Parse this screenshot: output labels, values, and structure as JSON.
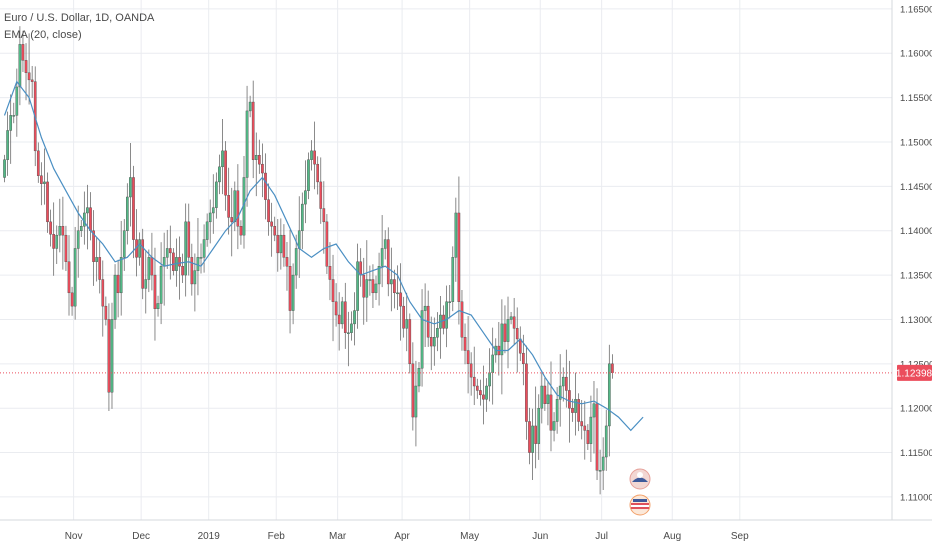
{
  "legend": {
    "symbol_line": "Euro / U.S. Dollar, 1D, OANDA",
    "indicator_line": "EMA (20, close)"
  },
  "price_tag": "1.12398",
  "colors": {
    "up": "#53b987",
    "down": "#eb4d5c",
    "ema": "#4a8fc3",
    "price_line": "#eb4d5c",
    "grid": "#eaecf0",
    "axis_text": "#4a4a4a",
    "background": "#ffffff"
  },
  "chart_data": {
    "type": "candlestick",
    "symbol": "EURUSD",
    "timeframe": "1D",
    "y_axis": {
      "ticks": [
        "1.16500",
        "1.16000",
        "1.15500",
        "1.15000",
        "1.14500",
        "1.14000",
        "1.13500",
        "1.13000",
        "1.12500",
        "1.12000",
        "1.11500",
        "1.11000"
      ],
      "range": [
        1.1074,
        1.166
      ]
    },
    "x_axis": {
      "labels": [
        {
          "text": "Nov",
          "date": "2018-11-01"
        },
        {
          "text": "Dec",
          "date": "2018-12-03"
        },
        {
          "text": "2019",
          "date": "2019-01-02"
        },
        {
          "text": "Feb",
          "date": "2019-02-01"
        },
        {
          "text": "Mar",
          "date": "2019-03-01"
        },
        {
          "text": "Apr",
          "date": "2019-04-01"
        },
        {
          "text": "May",
          "date": "2019-05-01"
        },
        {
          "text": "Jun",
          "date": "2019-06-03"
        },
        {
          "text": "Jul",
          "date": "2019-07-01"
        },
        {
          "text": "Aug",
          "date": "2019-08-01"
        },
        {
          "text": "Sep",
          "date": "2019-09-02"
        }
      ]
    },
    "last_price": 1.12398,
    "closes": [
      1.148,
      1.1513,
      1.153,
      1.153,
      1.1562,
      1.161,
      1.1592,
      1.1578,
      1.157,
      1.1568,
      1.149,
      1.1462,
      1.1453,
      1.1455,
      1.141,
      1.1396,
      1.138,
      1.1395,
      1.1405,
      1.1395,
      1.1365,
      1.133,
      1.1315,
      1.138,
      1.14,
      1.1405,
      1.142,
      1.1426,
      1.14,
      1.1365,
      1.137,
      1.1345,
      1.1315,
      1.13,
      1.1218,
      1.13,
      1.135,
      1.133,
      1.137,
      1.14,
      1.1438,
      1.146,
      1.139,
      1.137,
      1.139,
      1.1335,
      1.1345,
      1.137,
      1.135,
      1.1312,
      1.1318,
      1.136,
      1.137,
      1.138,
      1.1375,
      1.1355,
      1.137,
      1.136,
      1.135,
      1.141,
      1.137,
      1.134,
      1.1355,
      1.137,
      1.137,
      1.139,
      1.141,
      1.142,
      1.1426,
      1.1455,
      1.1472,
      1.149,
      1.144,
      1.1415,
      1.141,
      1.1445,
      1.1405,
      1.1395,
      1.146,
      1.1535,
      1.1545,
      1.148,
      1.1485,
      1.1475,
      1.1465,
      1.1435,
      1.141,
      1.1405,
      1.1395,
      1.1375,
      1.1395,
      1.137,
      1.136,
      1.131,
      1.135,
      1.138,
      1.14,
      1.143,
      1.1445,
      1.148,
      1.149,
      1.1475,
      1.1455,
      1.1425,
      1.141,
      1.136,
      1.1345,
      1.132,
      1.1305,
      1.1295,
      1.132,
      1.1285,
      1.1285,
      1.1295,
      1.131,
      1.1365,
      1.135,
      1.1325,
      1.1345,
      1.1345,
      1.133,
      1.134,
      1.136,
      1.138,
      1.139,
      1.134,
      1.1345,
      1.133,
      1.133,
      1.1315,
      1.129,
      1.13,
      1.125,
      1.119,
      1.1225,
      1.1245,
      1.131,
      1.1315,
      1.128,
      1.127,
      1.128,
      1.129,
      1.1305,
      1.129,
      1.132,
      1.132,
      1.137,
      1.142,
      1.132,
      1.128,
      1.1265,
      1.125,
      1.1235,
      1.1225,
      1.122,
      1.1215,
      1.121,
      1.1225,
      1.124,
      1.126,
      1.127,
      1.126,
      1.1295,
      1.1275,
      1.13,
      1.1303,
      1.129,
      1.1278,
      1.1262,
      1.125,
      1.1185,
      1.115,
      1.118,
      1.116,
      1.12,
      1.1225,
      1.1205,
      1.1215,
      1.1175,
      1.1185,
      1.121,
      1.1225,
      1.1235,
      1.122,
      1.12,
      1.1195,
      1.121,
      1.1185,
      1.118,
      1.1175,
      1.116,
      1.119,
      1.1205,
      1.113,
      1.113,
      1.1145,
      1.118,
      1.125,
      1.124
    ],
    "ema": {
      "name": "EMA (20, close)",
      "points": [
        [
          0,
          1.153
        ],
        [
          4,
          1.1568
        ],
        [
          8,
          1.155
        ],
        [
          12,
          1.1505
        ],
        [
          16,
          1.147
        ],
        [
          20,
          1.1445
        ],
        [
          24,
          1.142
        ],
        [
          28,
          1.14
        ],
        [
          32,
          1.1385
        ],
        [
          36,
          1.1365
        ],
        [
          40,
          1.137
        ],
        [
          44,
          1.1385
        ],
        [
          48,
          1.137
        ],
        [
          52,
          1.136
        ],
        [
          56,
          1.1363
        ],
        [
          60,
          1.1365
        ],
        [
          64,
          1.136
        ],
        [
          68,
          1.138
        ],
        [
          72,
          1.14
        ],
        [
          76,
          1.1415
        ],
        [
          80,
          1.1445
        ],
        [
          84,
          1.146
        ],
        [
          88,
          1.144
        ],
        [
          92,
          1.141
        ],
        [
          96,
          1.138
        ],
        [
          100,
          1.137
        ],
        [
          104,
          1.138
        ],
        [
          108,
          1.1385
        ],
        [
          112,
          1.1365
        ],
        [
          116,
          1.135
        ],
        [
          120,
          1.1355
        ],
        [
          124,
          1.136
        ],
        [
          128,
          1.135
        ],
        [
          132,
          1.132
        ],
        [
          136,
          1.13
        ],
        [
          140,
          1.1295
        ],
        [
          144,
          1.13
        ],
        [
          148,
          1.131
        ],
        [
          152,
          1.1305
        ],
        [
          156,
          1.1285
        ],
        [
          160,
          1.1265
        ],
        [
          164,
          1.1265
        ],
        [
          168,
          1.1278
        ],
        [
          172,
          1.126
        ],
        [
          176,
          1.1235
        ],
        [
          180,
          1.1215
        ],
        [
          184,
          1.1208
        ],
        [
          188,
          1.1205
        ],
        [
          192,
          1.1208
        ],
        [
          196,
          1.12
        ],
        [
          200,
          1.119
        ],
        [
          204,
          1.1175
        ],
        [
          208,
          1.119
        ]
      ]
    }
  }
}
